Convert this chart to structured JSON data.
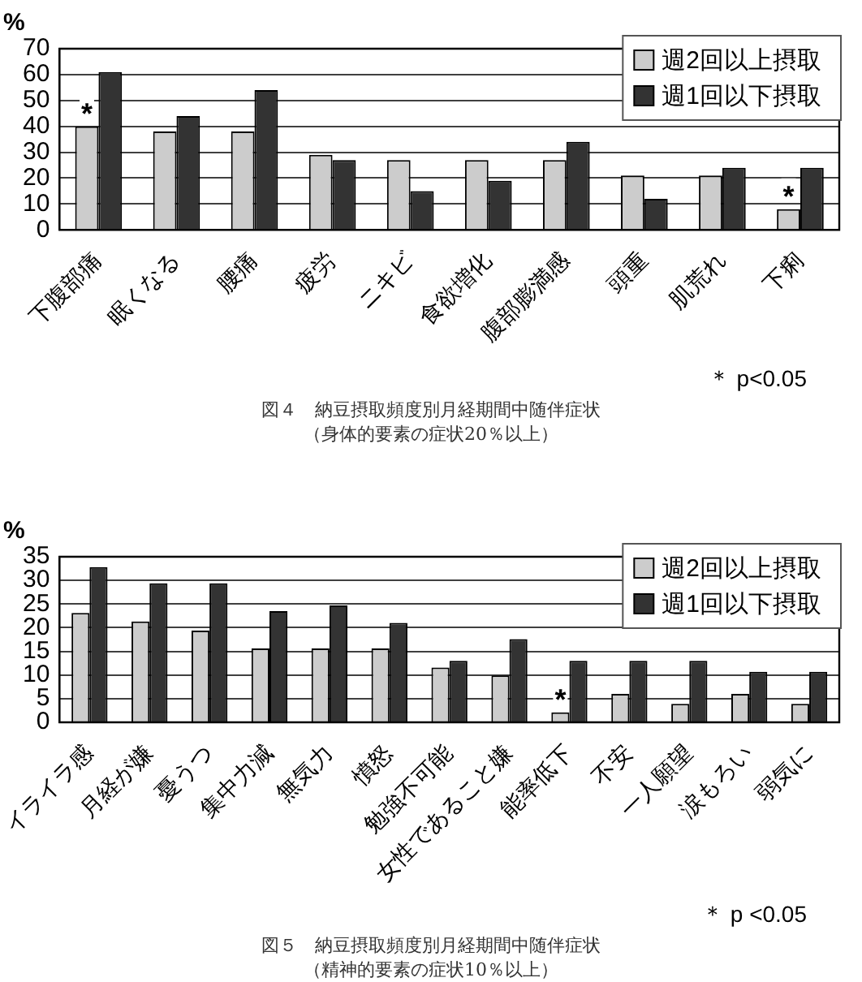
{
  "chart_data": [
    {
      "type": "bar",
      "title": "図４　納豆摂取頻度別月経期間中随伴症状",
      "subtitle": "（身体的要素の症状20％以上）",
      "ylabel": "%",
      "categories": [
        "下腹部痛",
        "眠くなる",
        "腰痛",
        "疲労",
        "ニキビ",
        "食欲増化",
        "腹部膨満感",
        "頭重",
        "肌荒れ",
        "下痢"
      ],
      "series": [
        {
          "name": "週2回以上摂取",
          "color": "#cccccc",
          "values": [
            40,
            38,
            38,
            29,
            27,
            27,
            27,
            21,
            21,
            8
          ],
          "value_labels": [
            "*",
            null,
            null,
            null,
            null,
            null,
            null,
            null,
            null,
            "*"
          ]
        },
        {
          "name": "週1回以下摂取",
          "color": "#333333",
          "values": [
            61,
            44,
            54,
            27,
            15,
            19,
            34,
            12,
            24,
            24
          ]
        }
      ],
      "ylim": [
        0,
        70
      ],
      "yticks": [
        0,
        10,
        20,
        30,
        40,
        50,
        60,
        70
      ],
      "grid": "y",
      "legend": "top right",
      "annotations": [
        "＊ p<0.05"
      ]
    },
    {
      "type": "bar",
      "title": "図５　納豆摂取頻度別月経期間中随伴症状",
      "subtitle": "（精神的要素の症状10％以上）",
      "ylabel": "%",
      "categories": [
        "イライラ感",
        "月経が嫌",
        "憂うつ",
        "集中力減",
        "無気力",
        "憤怒",
        "勉強不可能",
        "女性であること嫌",
        "能率低下",
        "不安",
        "一人願望",
        "涙もろい",
        "弱気に"
      ],
      "series": [
        {
          "name": "週2回以上摂取",
          "color": "#cccccc",
          "values": [
            23.1,
            21.3,
            19.4,
            15.6,
            15.6,
            15.6,
            11.6,
            9.9,
            2.1,
            6.0,
            3.9,
            6.0,
            3.9
          ],
          "value_labels": [
            null,
            null,
            null,
            null,
            null,
            null,
            null,
            null,
            "*",
            null,
            null,
            null,
            null
          ]
        },
        {
          "name": "週1回以下摂取",
          "color": "#333333",
          "values": [
            32.8,
            29.4,
            29.4,
            23.5,
            24.7,
            21.0,
            13.0,
            17.6,
            13.0,
            13.0,
            13.0,
            10.7,
            10.7
          ]
        }
      ],
      "ylim": [
        0,
        35
      ],
      "yticks": [
        0,
        5,
        10,
        15,
        20,
        25,
        30,
        35
      ],
      "grid": "y",
      "legend": "top right",
      "annotations": [
        "＊ p <0.05"
      ]
    }
  ]
}
